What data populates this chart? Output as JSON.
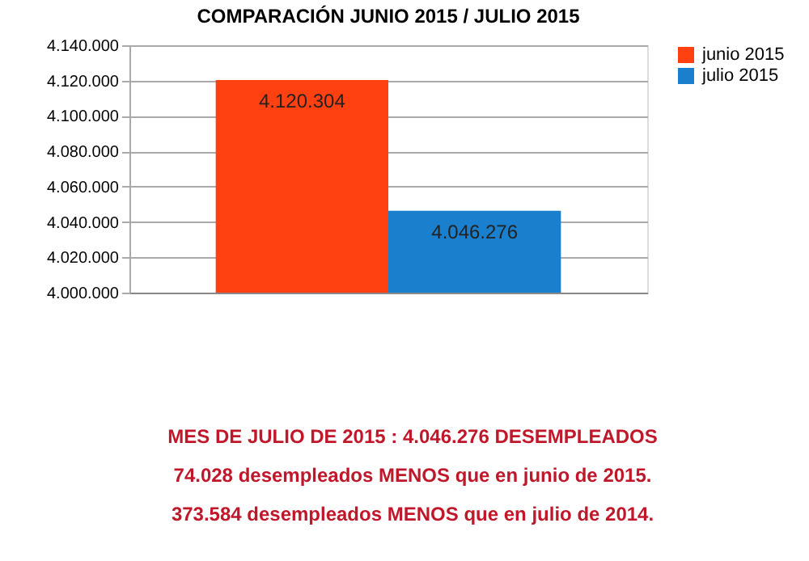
{
  "chart_data": {
    "type": "bar",
    "title": "COMPARACIÓN JUNIO  2015 /  JULIO 2015",
    "categories": [
      null
    ],
    "series": [
      {
        "name": "junio 2015",
        "color": "#ff4010",
        "values": [
          4120304
        ]
      },
      {
        "name": "julio 2015",
        "color": "#1a7fcc",
        "values": [
          4046276
        ]
      }
    ],
    "ylim": [
      4000000,
      4140000
    ],
    "yticks": [
      {
        "value": 4000000,
        "label": "4.000.000"
      },
      {
        "value": 4020000,
        "label": "4.020.000"
      },
      {
        "value": 4040000,
        "label": "4.040.000"
      },
      {
        "value": 4060000,
        "label": "4.060.000"
      },
      {
        "value": 4080000,
        "label": "4.080.000"
      },
      {
        "value": 4100000,
        "label": "4.100.000"
      },
      {
        "value": 4120000,
        "label": "4.120.000"
      },
      {
        "value": 4140000,
        "label": "4.140.000"
      }
    ],
    "value_labels": [
      "4.120.304",
      "4.046.276"
    ],
    "grid": "y",
    "legend": "right",
    "tick_labels": "y",
    "annotations": [
      "MES DE JULIO DE 2015 : 4.046.276 DESEMPLEADOS",
      "74.028 desempleados MENOS que en junio de 2015.",
      "373.584 desempleados MENOS que en julio de 2014."
    ]
  }
}
